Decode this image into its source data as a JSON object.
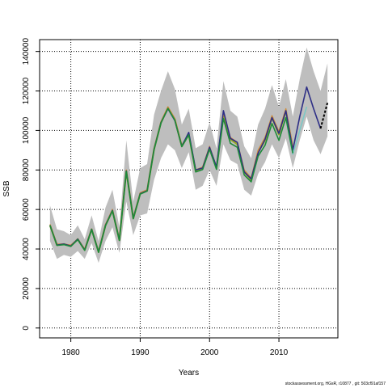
{
  "chart_data": {
    "type": "line",
    "xlabel": "Years",
    "ylabel": "SSB",
    "xlim": [
      1975.5,
      2018.5
    ],
    "ylim": [
      -5000,
      146000
    ],
    "xticks": [
      1980,
      1990,
      2000,
      2010
    ],
    "yticks": [
      0,
      20000,
      40000,
      60000,
      80000,
      100000,
      120000,
      140000
    ],
    "grid": true,
    "grid_style": "dotted",
    "band": {
      "color": "#bebebe",
      "x": [
        1977,
        1978,
        1979,
        1980,
        1981,
        1982,
        1983,
        1984,
        1985,
        1986,
        1987,
        1988,
        1989,
        1990,
        1991,
        1992,
        1993,
        1994,
        1995,
        1996,
        1997,
        1998,
        1999,
        2000,
        2001,
        2002,
        2003,
        2004,
        2005,
        2006,
        2007,
        2008,
        2009,
        2010,
        2011,
        2012,
        2013,
        2014,
        2015,
        2016,
        2017
      ],
      "upper": [
        62000,
        50000,
        49000,
        47000,
        52000,
        45000,
        57000,
        44000,
        61000,
        70000,
        51000,
        95000,
        64000,
        81000,
        83000,
        108000,
        120000,
        130000,
        121000,
        103000,
        111000,
        91000,
        93000,
        104000,
        91000,
        125000,
        110000,
        107000,
        92000,
        86000,
        103000,
        111000,
        123000,
        112000,
        126000,
        107000,
        126000,
        142000,
        130000,
        120000,
        134000
      ],
      "lower": [
        44000,
        35000,
        37000,
        36000,
        39000,
        35000,
        43000,
        33000,
        44000,
        51000,
        38000,
        64000,
        47000,
        57000,
        58000,
        75000,
        86000,
        93000,
        90000,
        81000,
        89000,
        70000,
        72000,
        80000,
        72000,
        93000,
        85000,
        83000,
        70000,
        67000,
        78000,
        84000,
        93000,
        86000,
        96000,
        81000,
        95000,
        107000,
        95000,
        88000,
        97000
      ]
    },
    "series": [
      {
        "color": "#9aa824",
        "width": 2.2,
        "x": [
          1977,
          1978,
          1979,
          1980,
          1981,
          1982,
          1983,
          1984,
          1985,
          1986,
          1987,
          1988,
          1989,
          1990,
          1991,
          1992,
          1993,
          1994,
          1995,
          1996,
          1997,
          1998,
          1999,
          2000,
          2001,
          2002,
          2003,
          2004,
          2005,
          2006,
          2007,
          2008,
          2009,
          2010,
          2011,
          2012
        ],
        "values": [
          52000,
          42000,
          42500,
          41500,
          45000,
          39500,
          50000,
          38500,
          52000,
          59500,
          44500,
          79500,
          55500,
          68000,
          69500,
          90500,
          104000,
          111500,
          105500,
          92000,
          98000,
          79500,
          81000,
          91000,
          81000,
          108000,
          95500,
          93000,
          79000,
          75000,
          89000,
          95000,
          106500,
          98000,
          110000,
          91000
        ]
      },
      {
        "color": "#cd8b3a",
        "width": 1.4,
        "x": [
          1977,
          1978,
          1979,
          1980,
          1981,
          1982,
          1983,
          1984,
          1985,
          1986,
          1987,
          1988,
          1989,
          1990,
          1991,
          1992,
          1993,
          1994,
          1995,
          1996,
          1997,
          1998,
          1999,
          2000,
          2001,
          2002,
          2003,
          2004,
          2005,
          2006,
          2007,
          2008,
          2009,
          2010,
          2011,
          2012
        ],
        "values": [
          52500,
          42500,
          42500,
          42000,
          45000,
          40000,
          50000,
          38500,
          52500,
          60000,
          45000,
          80000,
          56000,
          68500,
          70000,
          91000,
          104500,
          112000,
          106000,
          92500,
          98500,
          80000,
          81500,
          92000,
          81500,
          109000,
          96500,
          94000,
          80000,
          76000,
          90000,
          96500,
          107500,
          99500,
          111000,
          92000
        ]
      },
      {
        "color": "#2e2f86",
        "width": 1.6,
        "x": [
          1977,
          1978,
          1979,
          1980,
          1981,
          1982,
          1983,
          1984,
          1985,
          1986,
          1987,
          1988,
          1989,
          1990,
          1991,
          1992,
          1993,
          1994,
          1995,
          1996,
          1997,
          1998,
          1999,
          2000,
          2001,
          2002,
          2003,
          2004,
          2005,
          2006,
          2007,
          2008,
          2009,
          2010,
          2011,
          2012,
          2013,
          2014,
          2015,
          2016
        ],
        "values": [
          52000,
          42000,
          42500,
          41500,
          45000,
          39500,
          50000,
          38500,
          52000,
          59500,
          44500,
          79500,
          55500,
          68000,
          69500,
          90500,
          104000,
          111000,
          105000,
          92000,
          99000,
          80000,
          81000,
          91500,
          81500,
          110000,
          96000,
          94000,
          79000,
          75500,
          88500,
          95500,
          106500,
          98500,
          110000,
          90000,
          107000,
          122000,
          111000,
          101000
        ]
      },
      {
        "color": "#7bc8c6",
        "width": 1.6,
        "x": [
          2011,
          2012,
          2013,
          2014
        ],
        "values": [
          106000,
          88000,
          100000,
          112000
        ]
      },
      {
        "color": "#1e8a3a",
        "width": 1.6,
        "x": [
          1977,
          1978,
          1979,
          1980,
          1981,
          1982,
          1983,
          1984,
          1985,
          1986,
          1987,
          1988,
          1989,
          1990,
          1991,
          1992,
          1993,
          1994,
          1995,
          1996,
          1997,
          1998,
          1999,
          2000,
          2001,
          2002,
          2003,
          2004,
          2005,
          2006,
          2007,
          2008,
          2009,
          2010,
          2011,
          2012
        ],
        "values": [
          52000,
          41800,
          42200,
          41300,
          44700,
          39300,
          49800,
          38300,
          51800,
          59300,
          44300,
          79300,
          55300,
          67800,
          69300,
          90300,
          103800,
          111200,
          105200,
          91800,
          97800,
          79000,
          80200,
          90500,
          80300,
          106000,
          93500,
          91500,
          77500,
          74000,
          87000,
          92500,
          103500,
          95000,
          106500,
          88500
        ]
      }
    ],
    "forecast": {
      "color": "#000000",
      "dash": "3,2",
      "x": [
        2016,
        2017
      ],
      "values": [
        101000,
        114000
      ]
    }
  },
  "footer": "stockassessment.org, HGsR, r10877 , git: 503cf91af157"
}
